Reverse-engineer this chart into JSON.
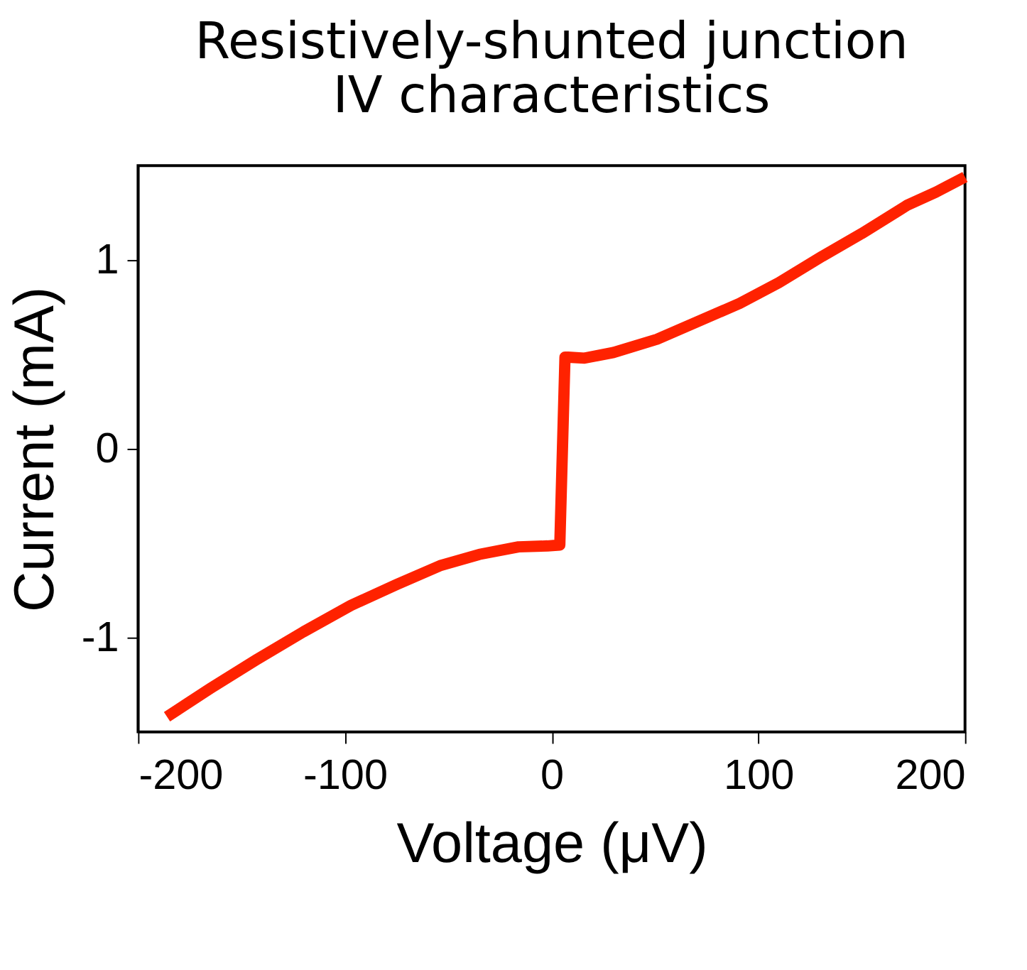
{
  "chart_data": {
    "type": "line",
    "title": [
      "Resistively-shunted junction",
      "IV characteristics"
    ],
    "xlabel": "Voltage (μV)",
    "ylabel": "Current (mA)",
    "x": [
      -186,
      -165,
      -143,
      -120,
      -97,
      -75,
      -54,
      -35,
      -16,
      -2,
      4,
      6.5,
      8,
      16,
      30,
      51,
      70,
      91,
      110,
      131,
      150,
      172,
      186,
      200
    ],
    "series": [
      {
        "color": "#ff2200",
        "values": [
          -1.42,
          -1.27,
          -1.12,
          -0.97,
          -0.83,
          -0.72,
          -0.62,
          -0.56,
          -0.52,
          -0.515,
          -0.51,
          0.485,
          0.485,
          0.48,
          0.51,
          0.58,
          0.67,
          0.77,
          0.88,
          1.02,
          1.14,
          1.29,
          1.36,
          1.44
        ]
      }
    ],
    "xlim": [
      -200,
      200
    ],
    "ylim": [
      -1.5,
      1.5
    ],
    "xticks": [
      -200,
      -100,
      0,
      100,
      200
    ],
    "yticks": [
      -1,
      0,
      1
    ],
    "grid": false,
    "legend": false,
    "marker": "none",
    "line_style": "solid"
  }
}
